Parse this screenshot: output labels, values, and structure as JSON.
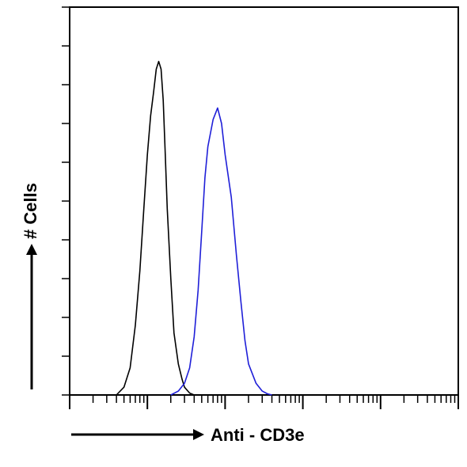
{
  "chart_data": {
    "type": "line",
    "title": "",
    "xlabel": "Anti - CD3e",
    "ylabel": "# Cells",
    "x_scale": "log",
    "xlim": [
      1,
      100000
    ],
    "ylim": [
      0,
      100
    ],
    "grid": false,
    "legend": "none",
    "series": [
      {
        "color": "#000000",
        "x": [
          4,
          5,
          6,
          7,
          8,
          9,
          10,
          11,
          12,
          13,
          14,
          15,
          16,
          17,
          18,
          20,
          22,
          25,
          28,
          30,
          35,
          40
        ],
        "y": [
          0,
          2,
          7,
          18,
          32,
          48,
          62,
          72,
          78,
          84,
          86,
          84,
          76,
          62,
          48,
          30,
          16,
          8,
          4,
          2,
          0.5,
          0
        ]
      },
      {
        "color": "#1f1fd8",
        "x": [
          20,
          25,
          30,
          35,
          40,
          45,
          50,
          55,
          60,
          70,
          80,
          90,
          100,
          120,
          140,
          160,
          180,
          200,
          250,
          300,
          350,
          400
        ],
        "y": [
          0,
          1,
          3,
          7,
          15,
          27,
          42,
          56,
          64,
          71,
          74,
          70,
          62,
          51,
          36,
          24,
          14,
          8,
          3,
          1,
          0.3,
          0
        ]
      }
    ]
  }
}
